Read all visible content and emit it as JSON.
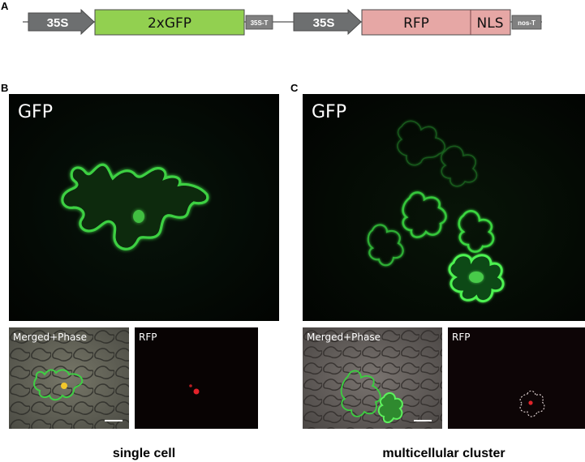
{
  "panels": {
    "a": "A",
    "b": "B",
    "c": "C"
  },
  "construct": {
    "promoter1": "35S",
    "gene1": "2xGFP",
    "terminator1": "35S-T",
    "promoter2": "35S",
    "gene2": "RFP",
    "signal": "NLS",
    "terminator2": "nos-T",
    "colors": {
      "promoter": "#6d6f70",
      "gfp": "#92d050",
      "rfp": "#e6a7a5",
      "terminator": "#808080"
    }
  },
  "panel_b": {
    "gfp_label": "GFP",
    "merged_label": "Merged+Phase",
    "rfp_label": "RFP",
    "caption": "single cell"
  },
  "panel_c": {
    "gfp_label": "GFP",
    "merged_label": "Merged+Phase",
    "rfp_label": "RFP",
    "caption": "multicellular cluster"
  }
}
